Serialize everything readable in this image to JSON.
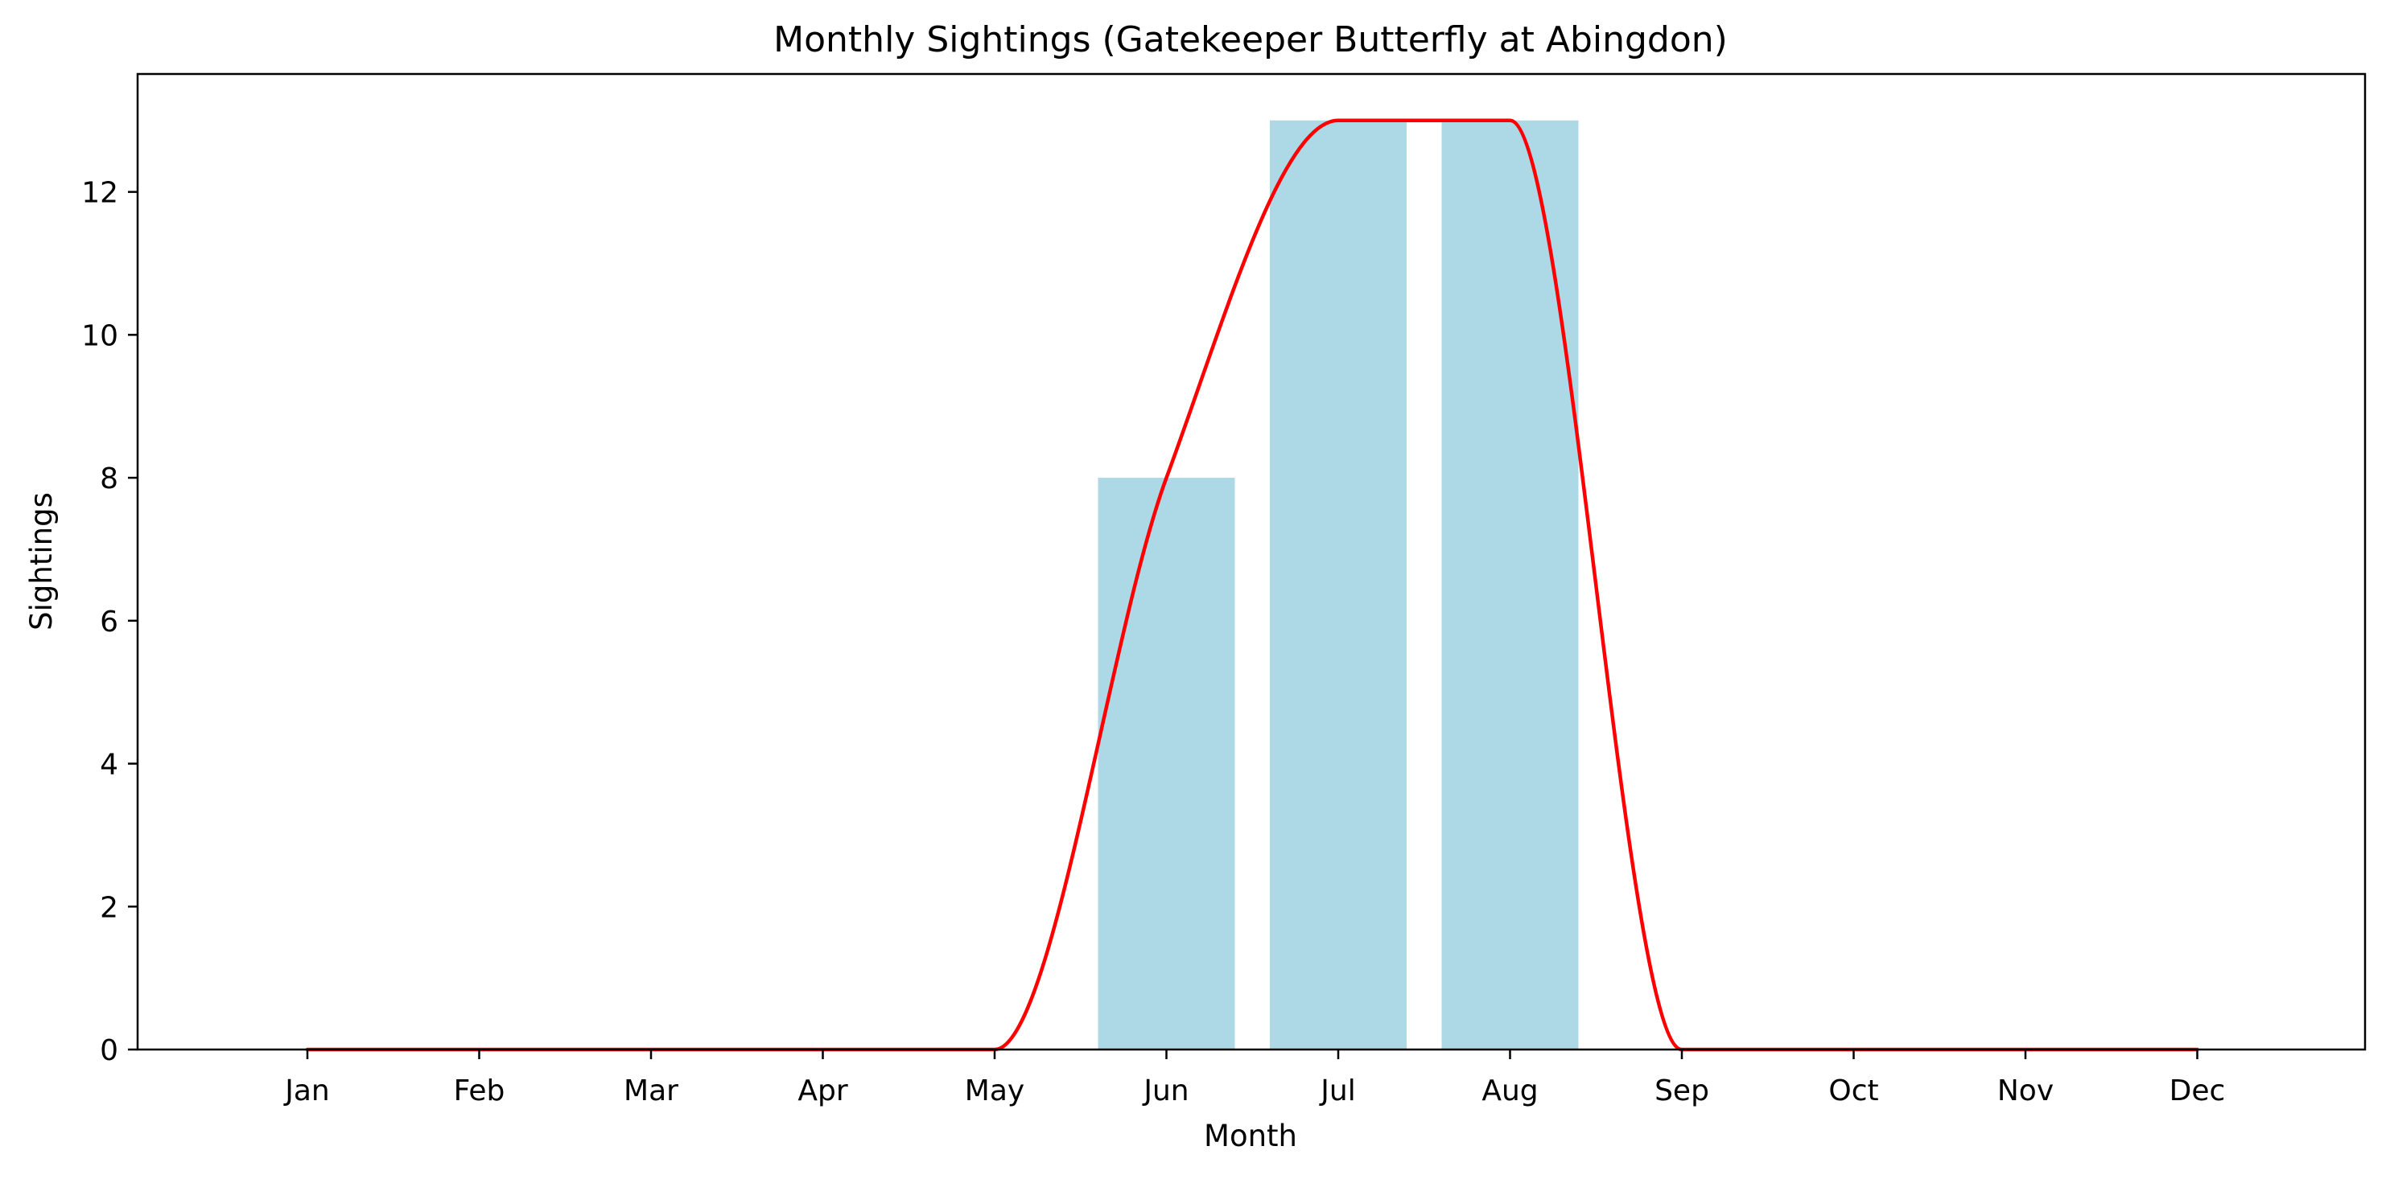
{
  "chart_data": {
    "type": "bar",
    "title": "Monthly Sightings (Gatekeeper Butterfly at Abingdon)",
    "xlabel": "Month",
    "ylabel": "Sightings",
    "categories": [
      "Jan",
      "Feb",
      "Mar",
      "Apr",
      "May",
      "Jun",
      "Jul",
      "Aug",
      "Sep",
      "Oct",
      "Nov",
      "Dec"
    ],
    "series": [
      {
        "type": "bar",
        "values": [
          0,
          0,
          0,
          0,
          0,
          8,
          13,
          13,
          0,
          0,
          0,
          0
        ],
        "color": "#add8e6"
      },
      {
        "type": "line",
        "smoothed": true,
        "values": [
          0,
          0,
          0,
          0,
          0,
          8,
          13,
          13,
          0,
          0,
          0,
          0
        ],
        "color": "#ff0000"
      }
    ],
    "visible_bar_categories": [
      "Jun",
      "Jul",
      "Aug"
    ],
    "ylim": [
      0,
      13.65
    ],
    "yticks": [
      0,
      2,
      4,
      6,
      8,
      10,
      12
    ],
    "grid": false,
    "legend": "none"
  }
}
